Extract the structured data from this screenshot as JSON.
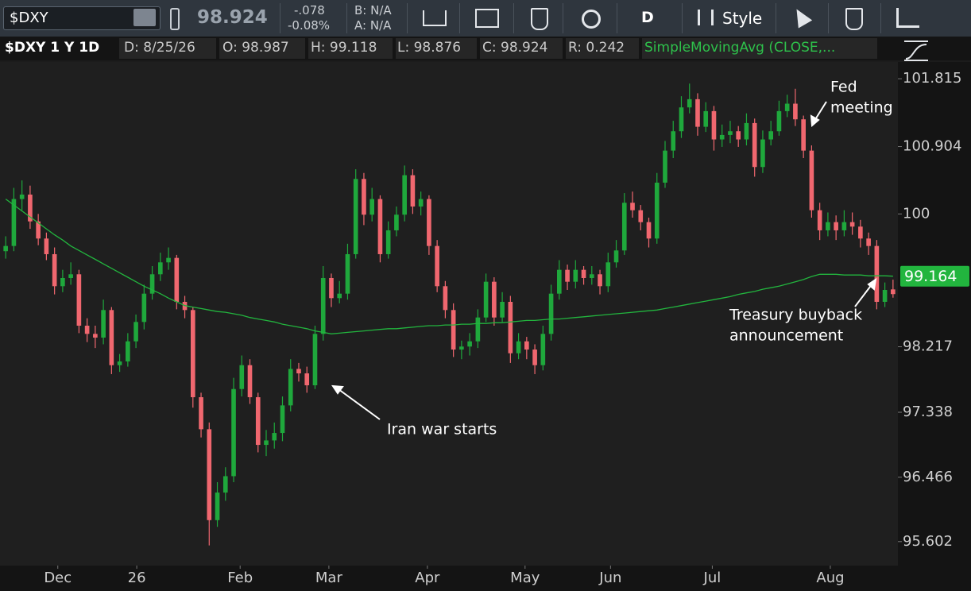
{
  "toolbar": {
    "symbol": "$DXY",
    "last": "98.924",
    "change": "-.078",
    "change_pct": "-0.08%",
    "bid": "B: N/A",
    "ask": "A: N/A",
    "period": "D",
    "style": "Style"
  },
  "info_bar": {
    "chart_label": "$DXY 1 Y 1D",
    "date": "D: 8/25/26",
    "open": "O: 98.987",
    "high": "H: 99.118",
    "low": "L: 98.876",
    "close": "C: 98.924",
    "range": "R: 0.242"
  },
  "chart_data": {
    "type": "candlestick",
    "series": [
      {
        "name": "$DXY",
        "up_color": "#1fa83c",
        "down_color": "#f0676f",
        "ohlc": [
          [
            99.5,
            99.7,
            99.4,
            99.57
          ],
          [
            99.57,
            100.35,
            99.5,
            100.2
          ],
          [
            100.2,
            100.45,
            100.05,
            100.26
          ],
          [
            100.26,
            100.38,
            99.8,
            99.9
          ],
          [
            99.9,
            100,
            99.58,
            99.67
          ],
          [
            99.67,
            99.75,
            99.38,
            99.46
          ],
          [
            99.46,
            99.55,
            98.92,
            99.03
          ],
          [
            99.03,
            99.25,
            98.95,
            99.14
          ],
          [
            99.14,
            99.35,
            99.05,
            99.19
          ],
          [
            99.19,
            99.25,
            98.4,
            98.5
          ],
          [
            98.5,
            98.6,
            98.28,
            98.39
          ],
          [
            98.39,
            98.5,
            98.2,
            98.34
          ],
          [
            98.34,
            98.85,
            98.25,
            98.71
          ],
          [
            98.71,
            98.75,
            97.85,
            97.97
          ],
          [
            97.97,
            98.12,
            97.88,
            98.02
          ],
          [
            98.02,
            98.4,
            97.95,
            98.29
          ],
          [
            98.29,
            98.65,
            98.2,
            98.55
          ],
          [
            98.55,
            99.05,
            98.45,
            98.93
          ],
          [
            98.93,
            99.3,
            98.85,
            99.19
          ],
          [
            99.19,
            99.48,
            99.1,
            99.35
          ],
          [
            99.35,
            99.55,
            99.25,
            99.41
          ],
          [
            99.41,
            99.45,
            98.72,
            98.82
          ],
          [
            98.82,
            98.9,
            98.6,
            98.71
          ],
          [
            98.71,
            98.75,
            97.4,
            97.54
          ],
          [
            97.54,
            97.6,
            97,
            97.11
          ],
          [
            97.11,
            97.2,
            95.55,
            95.89
          ],
          [
            95.89,
            96.4,
            95.8,
            96.26
          ],
          [
            96.26,
            96.6,
            96.15,
            96.48
          ],
          [
            96.48,
            97.8,
            96.4,
            97.65
          ],
          [
            97.65,
            98.1,
            97.55,
            97.97
          ],
          [
            97.97,
            98.05,
            97.45,
            97.54
          ],
          [
            97.54,
            97.6,
            96.8,
            96.9
          ],
          [
            96.9,
            97.1,
            96.75,
            96.96
          ],
          [
            96.96,
            97.2,
            96.85,
            97.06
          ],
          [
            97.06,
            97.55,
            96.95,
            97.43
          ],
          [
            97.43,
            98.05,
            97.35,
            97.92
          ],
          [
            97.92,
            98,
            97.75,
            97.86
          ],
          [
            97.86,
            97.95,
            97.6,
            97.7
          ],
          [
            97.7,
            98.5,
            97.65,
            98.39
          ],
          [
            98.39,
            99.3,
            98.3,
            99.14
          ],
          [
            99.14,
            99.2,
            98.75,
            98.87
          ],
          [
            98.87,
            99.1,
            98.8,
            98.93
          ],
          [
            98.93,
            99.6,
            98.85,
            99.46
          ],
          [
            99.46,
            100.6,
            99.4,
            100.47
          ],
          [
            100.47,
            100.55,
            99.85,
            99.99
          ],
          [
            99.99,
            100.35,
            99.9,
            100.2
          ],
          [
            100.2,
            100.25,
            99.35,
            99.46
          ],
          [
            99.46,
            99.9,
            99.4,
            99.78
          ],
          [
            99.78,
            100.1,
            99.7,
            99.99
          ],
          [
            99.99,
            100.65,
            99.9,
            100.52
          ],
          [
            100.52,
            100.6,
            100,
            100.1
          ],
          [
            100.1,
            100.3,
            99.98,
            100.2
          ],
          [
            100.2,
            100.25,
            99.45,
            99.57
          ],
          [
            99.57,
            99.65,
            98.95,
            99.03
          ],
          [
            99.03,
            99.1,
            98.6,
            98.71
          ],
          [
            98.71,
            98.8,
            98.08,
            98.18
          ],
          [
            98.18,
            98.3,
            98.05,
            98.22
          ],
          [
            98.22,
            98.4,
            98.1,
            98.29
          ],
          [
            98.29,
            98.72,
            98.2,
            98.61
          ],
          [
            98.61,
            99.2,
            98.55,
            99.09
          ],
          [
            99.09,
            99.15,
            98.5,
            98.61
          ],
          [
            98.61,
            98.95,
            98.55,
            98.82
          ],
          [
            98.82,
            98.9,
            98,
            98.13
          ],
          [
            98.13,
            98.4,
            98.05,
            98.29
          ],
          [
            98.29,
            98.35,
            98.05,
            98.18
          ],
          [
            98.18,
            98.25,
            97.85,
            97.97
          ],
          [
            97.97,
            98.5,
            97.9,
            98.39
          ],
          [
            98.39,
            99.05,
            98.3,
            98.93
          ],
          [
            98.93,
            99.38,
            98.85,
            99.25
          ],
          [
            99.25,
            99.32,
            98.98,
            99.09
          ],
          [
            99.09,
            99.38,
            99,
            99.25
          ],
          [
            99.25,
            99.3,
            99.05,
            99.14
          ],
          [
            99.14,
            99.3,
            99.05,
            99.19
          ],
          [
            99.19,
            99.25,
            98.92,
            99.03
          ],
          [
            99.03,
            99.48,
            98.95,
            99.35
          ],
          [
            99.35,
            99.65,
            99.28,
            99.51
          ],
          [
            99.51,
            100.28,
            99.45,
            100.15
          ],
          [
            100.15,
            100.3,
            99.95,
            100.05
          ],
          [
            100.05,
            100.12,
            99.78,
            99.89
          ],
          [
            99.89,
            99.95,
            99.55,
            99.67
          ],
          [
            99.67,
            100.55,
            99.6,
            100.42
          ],
          [
            100.42,
            100.98,
            100.35,
            100.85
          ],
          [
            100.85,
            101.25,
            100.75,
            101.11
          ],
          [
            101.11,
            101.58,
            101.02,
            101.43
          ],
          [
            101.43,
            101.75,
            101.35,
            101.54
          ],
          [
            101.54,
            101.62,
            101.05,
            101.17
          ],
          [
            101.17,
            101.5,
            101.1,
            101.38
          ],
          [
            101.38,
            101.45,
            100.85,
            101
          ],
          [
            101,
            101.2,
            100.9,
            101.06
          ],
          [
            101.06,
            101.25,
            100.95,
            101.11
          ],
          [
            101.11,
            101.18,
            100.9,
            101
          ],
          [
            101,
            101.35,
            100.92,
            101.22
          ],
          [
            101.22,
            101.28,
            100.5,
            100.63
          ],
          [
            100.63,
            101.12,
            100.55,
            101
          ],
          [
            101,
            101.25,
            100.92,
            101.11
          ],
          [
            101.11,
            101.52,
            101.05,
            101.38
          ],
          [
            101.38,
            101.6,
            101.3,
            101.48
          ],
          [
            101.48,
            101.68,
            101.18,
            101.27
          ],
          [
            101.27,
            101.32,
            100.75,
            100.85
          ],
          [
            100.85,
            100.92,
            99.95,
            100.05
          ],
          [
            100.05,
            100.15,
            99.65,
            99.78
          ],
          [
            99.78,
            100.02,
            99.7,
            99.89
          ],
          [
            99.89,
            99.98,
            99.65,
            99.78
          ],
          [
            99.78,
            100.05,
            99.7,
            99.89
          ],
          [
            99.89,
            100.02,
            99.72,
            99.83
          ],
          [
            99.83,
            99.92,
            99.55,
            99.67
          ],
          [
            99.67,
            99.75,
            99.45,
            99.57
          ],
          [
            99.57,
            99.65,
            98.72,
            98.82
          ],
          [
            98.82,
            99.08,
            98.75,
            98.98
          ],
          [
            98.987,
            99.118,
            98.876,
            98.924
          ]
        ]
      },
      {
        "name": "SimpleMovingAvg (CLOSE,...",
        "color": "#22b53e",
        "values": [
          100.2,
          100.12,
          100.04,
          99.96,
          99.88,
          99.8,
          99.72,
          99.65,
          99.57,
          99.51,
          99.45,
          99.39,
          99.33,
          99.27,
          99.21,
          99.15,
          99.09,
          99.03,
          98.98,
          98.93,
          98.87,
          98.82,
          98.77,
          98.75,
          98.73,
          98.71,
          98.69,
          98.68,
          98.66,
          98.64,
          98.61,
          98.59,
          98.57,
          98.55,
          98.52,
          98.5,
          98.48,
          98.46,
          98.43,
          98.41,
          98.39,
          98.4,
          98.41,
          98.42,
          98.43,
          98.44,
          98.45,
          98.46,
          98.46,
          98.47,
          98.48,
          98.49,
          98.5,
          98.5,
          98.51,
          98.51,
          98.52,
          98.52,
          98.53,
          98.53,
          98.54,
          98.54,
          98.55,
          98.56,
          98.57,
          98.57,
          98.58,
          98.59,
          98.59,
          98.6,
          98.61,
          98.62,
          98.63,
          98.64,
          98.65,
          98.66,
          98.67,
          98.68,
          98.69,
          98.7,
          98.71,
          98.73,
          98.75,
          98.77,
          98.79,
          98.81,
          98.83,
          98.85,
          98.87,
          98.89,
          98.92,
          98.94,
          98.96,
          98.99,
          99.01,
          99.03,
          99.06,
          99.09,
          99.12,
          99.16,
          99.19,
          99.19,
          99.19,
          99.18,
          99.18,
          99.18,
          99.17,
          99.17,
          99.17,
          99.164
        ]
      }
    ],
    "xlim": [
      -0.7,
      109.6
    ],
    "xticks": [
      {
        "value": 6.4,
        "label": "Dec"
      },
      {
        "value": 16.1,
        "label": "26"
      },
      {
        "value": 28.8,
        "label": "Feb"
      },
      {
        "value": 39.7,
        "label": "Mar"
      },
      {
        "value": 51.8,
        "label": "Apr"
      },
      {
        "value": 63.8,
        "label": "May"
      },
      {
        "value": 74.3,
        "label": "Jun"
      },
      {
        "value": 86.8,
        "label": "Jul"
      },
      {
        "value": 101.3,
        "label": "Aug"
      }
    ],
    "ylim": [
      95.28,
      102.04
    ],
    "yticks": [
      101.815,
      100.904,
      100,
      98.217,
      97.338,
      96.466,
      95.602
    ],
    "grid": false,
    "annotations": [
      {
        "lines": [
          "Fed",
          "meeting"
        ]
      },
      {
        "lines": [
          "Iran war starts"
        ]
      },
      {
        "lines": [
          "Treasury buyback",
          "announcement"
        ]
      }
    ]
  }
}
